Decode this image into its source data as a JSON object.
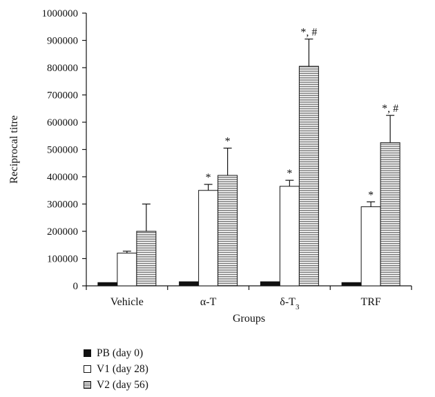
{
  "chart_data": {
    "type": "bar",
    "xlabel": "Groups",
    "ylabel": "Reciprocal titre",
    "ylim": [
      0,
      1000000
    ],
    "yticks": [
      "0",
      "100000",
      "200000",
      "300000",
      "400000",
      "500000",
      "600000",
      "700000",
      "800000",
      "900000",
      "1000000"
    ],
    "categories": [
      {
        "base": "Vehicle",
        "sub": ""
      },
      {
        "base": "α-T",
        "sub": ""
      },
      {
        "base": "δ-T",
        "sub": "3"
      },
      {
        "base": "TRF",
        "sub": ""
      }
    ],
    "series": [
      {
        "name": "PB (day 0)",
        "style": "solid",
        "values": [
          12000,
          15000,
          15000,
          12000
        ],
        "errors": [
          0,
          0,
          0,
          0
        ],
        "annotations": [
          "",
          "",
          "",
          ""
        ]
      },
      {
        "name": "V1 (day 28)",
        "style": "white",
        "values": [
          120000,
          350000,
          365000,
          290000
        ],
        "errors": [
          7000,
          22000,
          22000,
          18000
        ],
        "annotations": [
          "",
          "*",
          "*",
          "*"
        ]
      },
      {
        "name": "V2 (day 56)",
        "style": "hatch",
        "values": [
          200000,
          405000,
          805000,
          525000
        ],
        "errors": [
          100000,
          100000,
          100000,
          100000
        ],
        "annotations": [
          "",
          "*",
          "*, #",
          "*, #"
        ]
      }
    ],
    "legend_position": "bottom-left",
    "grid": false
  }
}
